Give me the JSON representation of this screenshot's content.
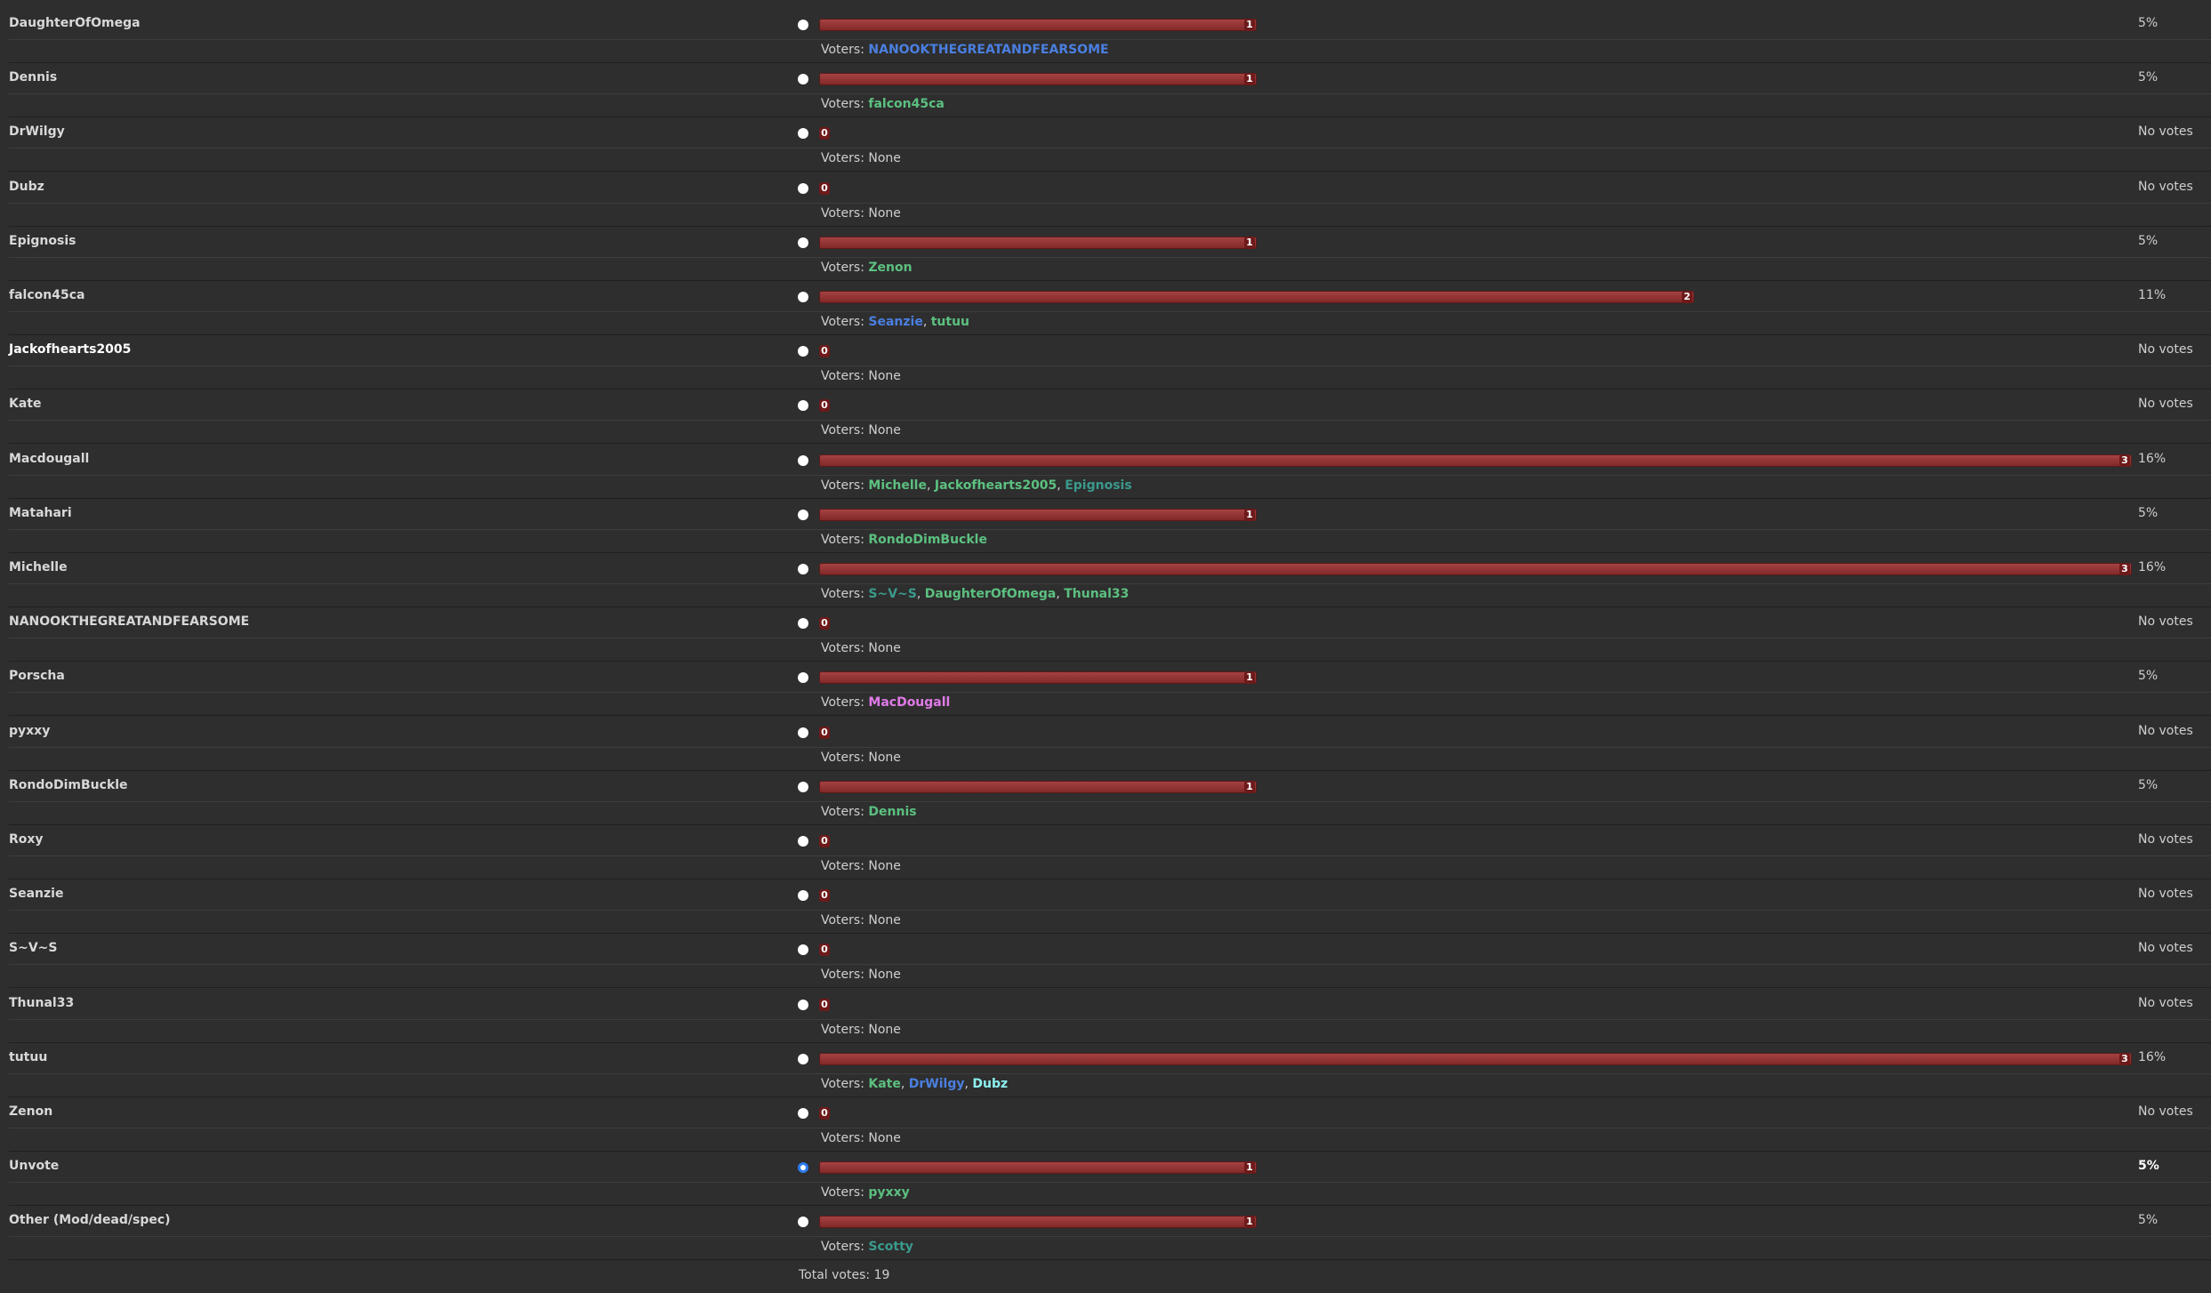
{
  "poll": {
    "voters_label": "Voters:",
    "none_label": "None",
    "separator": ", ",
    "total_label": "Total votes:",
    "total": 19,
    "options": [
      {
        "name": "DaughterOfOmega",
        "votes": 1,
        "percent": "5%",
        "voters": [
          {
            "name": "NANOOKTHEGREATANDFEARSOME",
            "color": "#4a7fe0"
          }
        ]
      },
      {
        "name": "Dennis",
        "votes": 1,
        "percent": "5%",
        "voters": [
          {
            "name": "falcon45ca",
            "color": "#5cc080"
          }
        ]
      },
      {
        "name": "DrWilgy",
        "votes": 0,
        "percent": "No votes",
        "voters": []
      },
      {
        "name": "Dubz",
        "votes": 0,
        "percent": "No votes",
        "voters": []
      },
      {
        "name": "Epignosis",
        "votes": 1,
        "percent": "5%",
        "voters": [
          {
            "name": "Zenon",
            "color": "#5cc080"
          }
        ]
      },
      {
        "name": "falcon45ca",
        "votes": 2,
        "percent": "11%",
        "voters": [
          {
            "name": "Seanzie",
            "color": "#4a7fe0"
          },
          {
            "name": "tutuu",
            "color": "#5cc080"
          }
        ]
      },
      {
        "name": "Jackofhearts2005",
        "votes": 0,
        "percent": "No votes",
        "voters": [],
        "bold": true
      },
      {
        "name": "Kate",
        "votes": 0,
        "percent": "No votes",
        "voters": []
      },
      {
        "name": "Macdougall",
        "votes": 3,
        "percent": "16%",
        "voters": [
          {
            "name": "Michelle",
            "color": "#5cc080"
          },
          {
            "name": "Jackofhearts2005",
            "color": "#5cc080"
          },
          {
            "name": "Epignosis",
            "color": "#3a9a8c"
          }
        ]
      },
      {
        "name": "Matahari",
        "votes": 1,
        "percent": "5%",
        "voters": [
          {
            "name": "RondoDimBuckle",
            "color": "#5cc080"
          }
        ]
      },
      {
        "name": "Michelle",
        "votes": 3,
        "percent": "16%",
        "voters": [
          {
            "name": "S~V~S",
            "color": "#3a9a8c"
          },
          {
            "name": "DaughterOfOmega",
            "color": "#5cc080"
          },
          {
            "name": "Thunal33",
            "color": "#5cc080"
          }
        ]
      },
      {
        "name": "NANOOKTHEGREATANDFEARSOME",
        "votes": 0,
        "percent": "No votes",
        "voters": []
      },
      {
        "name": "Porscha",
        "votes": 1,
        "percent": "5%",
        "voters": [
          {
            "name": "MacDougall",
            "color": "#e07ae8"
          }
        ]
      },
      {
        "name": "pyxxy",
        "votes": 0,
        "percent": "No votes",
        "voters": []
      },
      {
        "name": "RondoDimBuckle",
        "votes": 1,
        "percent": "5%",
        "voters": [
          {
            "name": "Dennis",
            "color": "#5cc080"
          }
        ]
      },
      {
        "name": "Roxy",
        "votes": 0,
        "percent": "No votes",
        "voters": []
      },
      {
        "name": "Seanzie",
        "votes": 0,
        "percent": "No votes",
        "voters": []
      },
      {
        "name": "S~V~S",
        "votes": 0,
        "percent": "No votes",
        "voters": []
      },
      {
        "name": "Thunal33",
        "votes": 0,
        "percent": "No votes",
        "voters": []
      },
      {
        "name": "tutuu",
        "votes": 3,
        "percent": "16%",
        "voters": [
          {
            "name": "Kate",
            "color": "#5cc080"
          },
          {
            "name": "DrWilgy",
            "color": "#4a7fe0"
          },
          {
            "name": "Dubz",
            "color": "#8ef0f0"
          }
        ]
      },
      {
        "name": "Zenon",
        "votes": 0,
        "percent": "No votes",
        "voters": []
      },
      {
        "name": "Unvote",
        "votes": 1,
        "percent": "5%",
        "voters": [
          {
            "name": "pyxxy",
            "color": "#5cc080"
          }
        ],
        "selected": true
      },
      {
        "name": "Other (Mod/dead/spec)",
        "votes": 1,
        "percent": "5%",
        "voters": [
          {
            "name": "Scotty",
            "color": "#3a9a8c"
          }
        ]
      }
    ]
  }
}
